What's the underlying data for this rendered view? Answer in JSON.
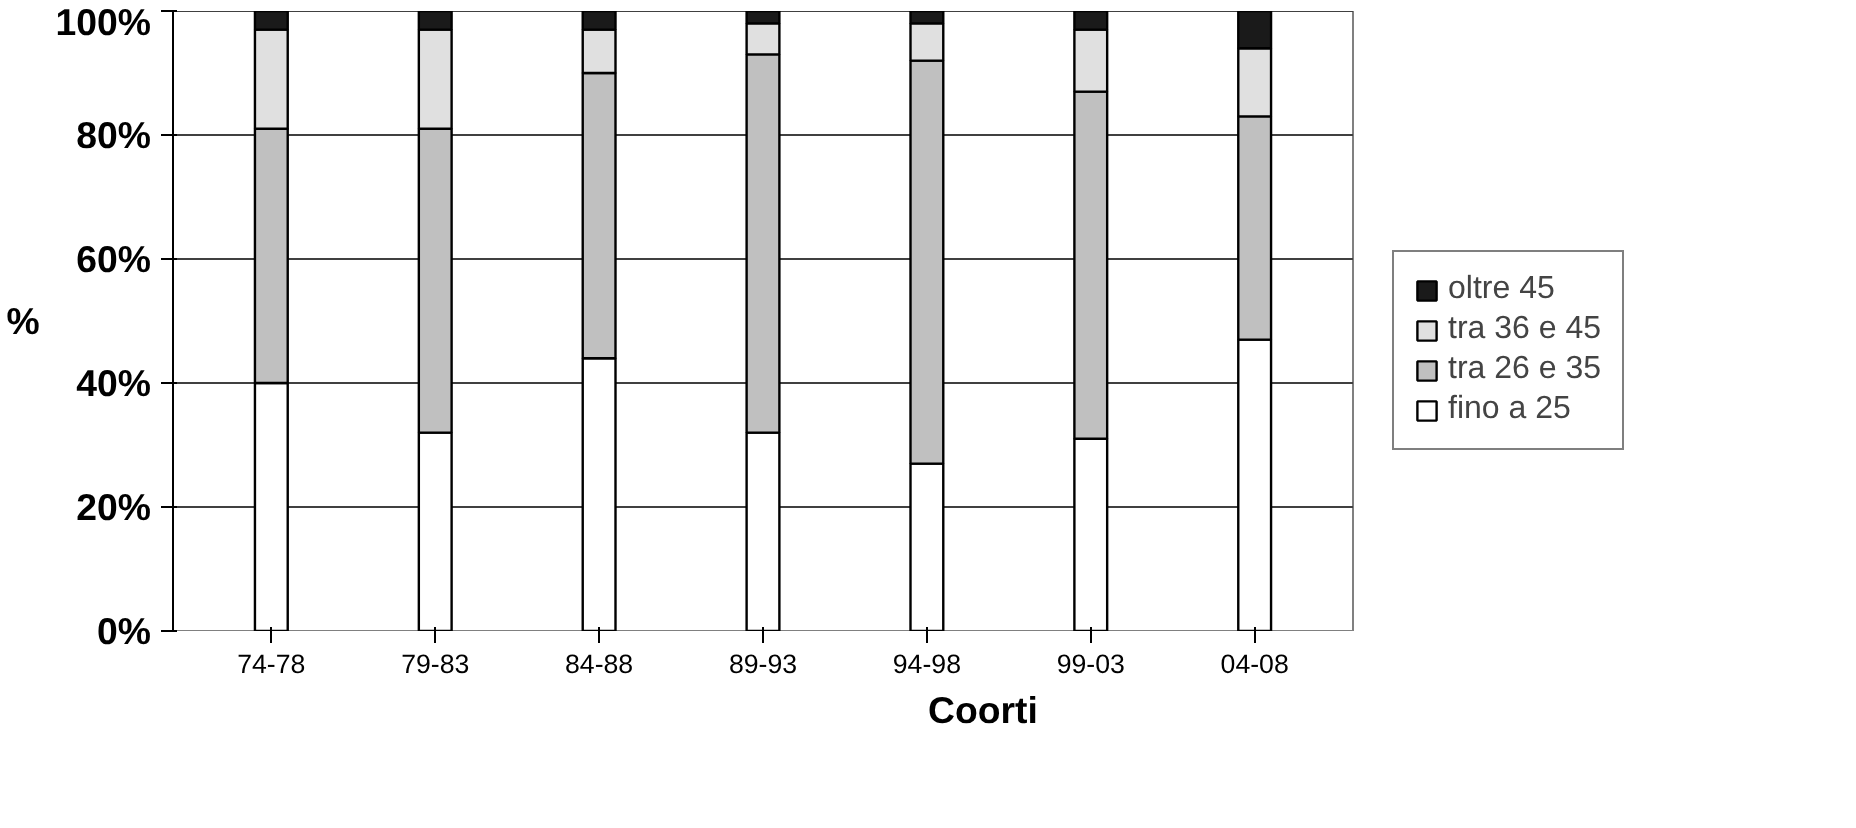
{
  "chart_data": {
    "type": "bar",
    "stacked": true,
    "xlabel": "Coorti",
    "ylabel": "%",
    "categories": [
      "74-78",
      "79-83",
      "84-88",
      "89-93",
      "94-98",
      "99-03",
      "04-08"
    ],
    "series": [
      {
        "name": "fino a 25",
        "color": "#ffffff",
        "values": [
          40,
          32,
          44,
          32,
          27,
          31,
          47
        ]
      },
      {
        "name": "tra 26 e 35",
        "color": "#c0c0c0",
        "values": [
          41,
          49,
          46,
          61,
          65,
          56,
          36
        ]
      },
      {
        "name": "tra 36 e 45",
        "color": "#e0e0e0",
        "values": [
          16,
          16,
          7,
          5,
          6,
          10,
          11
        ]
      },
      {
        "name": "oltre 45",
        "color": "#1a1a1a",
        "values": [
          3,
          3,
          3,
          2,
          2,
          3,
          6
        ]
      }
    ],
    "ylim": [
      0,
      100
    ],
    "yticks": [
      {
        "value": 0,
        "label": "0%"
      },
      {
        "value": 20,
        "label": "20%"
      },
      {
        "value": 40,
        "label": "40%"
      },
      {
        "value": 60,
        "label": "60%"
      },
      {
        "value": 80,
        "label": "80%"
      },
      {
        "value": 100,
        "label": "100%"
      }
    ],
    "grid": "y",
    "legend": "right"
  }
}
